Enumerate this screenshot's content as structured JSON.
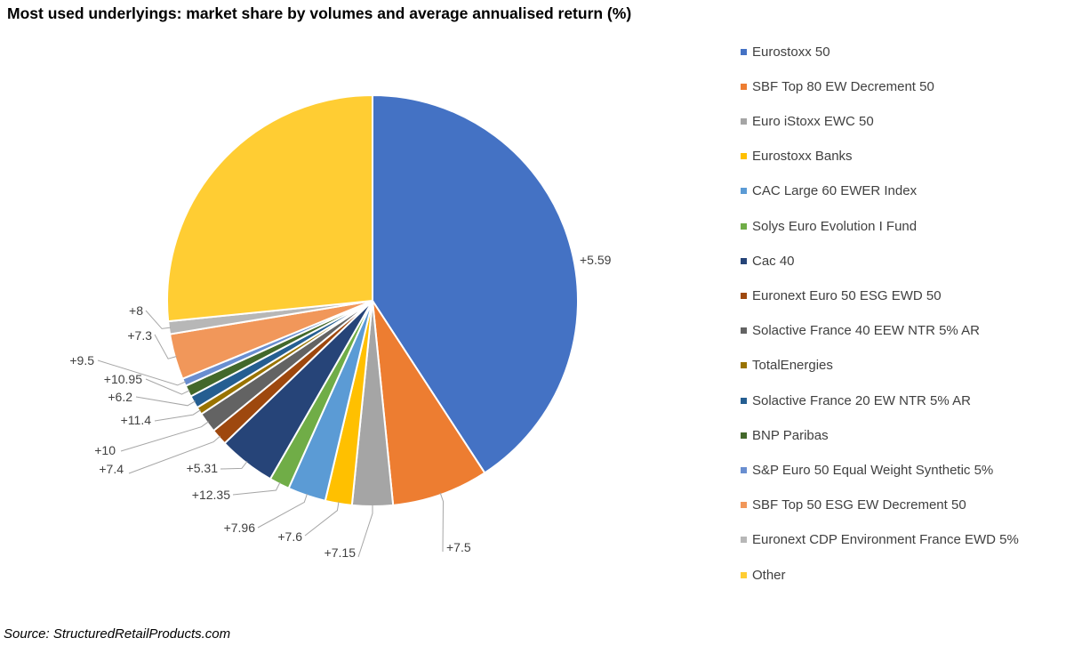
{
  "title": "Most used underlyings: market share by volumes and average annualised return (%)",
  "source": "Source: StructuredRetailProducts.com",
  "chart_data": {
    "type": "pie",
    "title": "Most used underlyings: market share by volumes and average annualised return (%)",
    "legend_position": "right",
    "start_angle_deg": 0,
    "direction": "clockwise",
    "slices": [
      {
        "name": "Eurostoxx 50",
        "share": 40.8,
        "label": "+5.59",
        "color": "#4472C4"
      },
      {
        "name": "SBF Top 80 EW Decrement 50",
        "share": 7.6,
        "label": "+7.5",
        "color": "#ED7D31"
      },
      {
        "name": "Euro iStoxx EWC 50",
        "share": 3.2,
        "label": "+7.15",
        "color": "#A5A5A5"
      },
      {
        "name": "Eurostoxx Banks",
        "share": 2.1,
        "label": "+7.6",
        "color": "#FFC000"
      },
      {
        "name": "CAC Large 60 EWER Index",
        "share": 3.0,
        "label": "+7.96",
        "color": "#5B9BD5"
      },
      {
        "name": "Solys Euro Evolution I Fund",
        "share": 1.6,
        "label": "+12.35",
        "color": "#70AD47"
      },
      {
        "name": "Cac 40",
        "share": 4.5,
        "label": "+5.31",
        "color": "#264478"
      },
      {
        "name": "Euronext Euro 50 ESG EWD 50",
        "share": 1.3,
        "label": "+7.4",
        "color": "#9E480E"
      },
      {
        "name": "Solactive France 40 EEW NTR 5% AR",
        "share": 1.6,
        "label": "+10",
        "color": "#636363"
      },
      {
        "name": "TotalEnergies",
        "share": 0.6,
        "label": "+11.4",
        "color": "#997300"
      },
      {
        "name": "Solactive France 20 EW NTR 5% AR",
        "share": 1.0,
        "label": "+6.2",
        "color": "#255E91"
      },
      {
        "name": "BNP Paribas",
        "share": 0.9,
        "label": "+10.95",
        "color": "#43682B"
      },
      {
        "name": "S&P Euro 50 Equal Weight Synthetic 5%",
        "share": 0.6,
        "label": "+9.5",
        "color": "#698ED0"
      },
      {
        "name": "SBF Top 50 ESG EW Decrement 50",
        "share": 3.6,
        "label": "+7.3",
        "color": "#F1975A"
      },
      {
        "name": "Euronext CDP Environment France EWD 5%",
        "share": 1.0,
        "label": "+8",
        "color": "#B7B7B7"
      },
      {
        "name": "Other",
        "share": 26.6,
        "label": "",
        "color": "#FFCD33"
      }
    ]
  }
}
